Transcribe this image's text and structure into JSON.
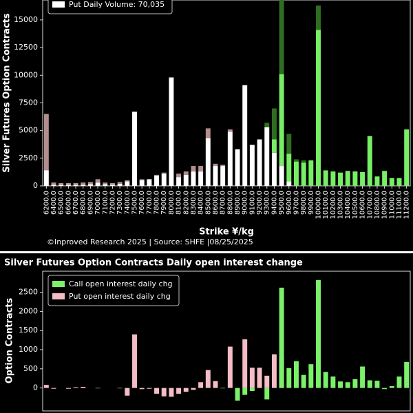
{
  "chart_data": [
    {
      "type": "stacked_bar",
      "y_label": "Silver Futures Option Contracts",
      "x_label": "Strike ¥/kg",
      "credit": "©Inproved Research 2025 | Source: SHFE |08/25/2025",
      "categories": [
        "6200.0",
        "6400.0",
        "6500.0",
        "6600.0",
        "6700.0",
        "6800.0",
        "6900.0",
        "7000.0",
        "7100.0",
        "7200.0",
        "7300.0",
        "7400.0",
        "7500.0",
        "7600.0",
        "7700.0",
        "7800.0",
        "7900.0",
        "8000.0",
        "8100.0",
        "8200.0",
        "8300.0",
        "8400.0",
        "8500.0",
        "8600.0",
        "8700.0",
        "8800.0",
        "8900.0",
        "9000.0",
        "9100.0",
        "9200.0",
        "9300.0",
        "9400.0",
        "9500.0",
        "9600.0",
        "9700.0",
        "9800.0",
        "9900.0",
        "10000.0",
        "10100.0",
        "10200.0",
        "10300.0",
        "10400.0",
        "10500.0",
        "10600.0",
        "10700.0",
        "10800.0",
        "10900.0",
        "11000.0",
        "11100.0",
        "11200.0"
      ],
      "series": [
        {
          "name": "Put Daily Volume: 70,035",
          "color": "#ffffff",
          "values": [
            1400,
            100,
            100,
            100,
            100,
            100,
            150,
            300,
            150,
            100,
            200,
            400,
            6700,
            500,
            600,
            900,
            1100,
            9800,
            800,
            1000,
            1300,
            1300,
            4300,
            1800,
            1800,
            4900,
            3300,
            9100,
            3700,
            4200,
            5300,
            3000,
            1800,
            400,
            0,
            0,
            0,
            0,
            0,
            0,
            0,
            0,
            0,
            0,
            0,
            0,
            0,
            0,
            0,
            0
          ]
        },
        {
          "color": "#b48d8d",
          "values": [
            5100,
            200,
            150,
            150,
            150,
            200,
            200,
            300,
            150,
            150,
            150,
            100,
            0,
            100,
            0,
            100,
            100,
            0,
            300,
            300,
            500,
            500,
            900,
            200,
            100,
            200,
            0,
            0,
            0,
            0,
            0,
            0,
            0,
            0,
            0,
            0,
            0,
            0,
            0,
            0,
            0,
            0,
            0,
            0,
            0,
            0,
            0,
            0,
            0,
            0
          ]
        },
        {
          "color": "#77ee66",
          "values": [
            0,
            0,
            0,
            0,
            0,
            0,
            0,
            0,
            0,
            0,
            0,
            0,
            0,
            0,
            0,
            0,
            0,
            0,
            0,
            0,
            0,
            0,
            0,
            0,
            0,
            0,
            0,
            0,
            0,
            0,
            0,
            1200,
            8300,
            2500,
            2200,
            2100,
            2300,
            14100,
            1400,
            1300,
            1200,
            1350,
            1300,
            1250,
            4500,
            850,
            1350,
            700,
            700,
            5100
          ]
        },
        {
          "color": "#2f6e22",
          "values": [
            0,
            0,
            0,
            0,
            0,
            0,
            0,
            0,
            0,
            0,
            0,
            0,
            0,
            0,
            0,
            0,
            0,
            0,
            0,
            0,
            0,
            0,
            0,
            0,
            0,
            0,
            0,
            0,
            0,
            0,
            400,
            2800,
            6700,
            1800,
            200,
            200,
            0,
            2200,
            0,
            0,
            0,
            0,
            0,
            0,
            0,
            0,
            0,
            0,
            0,
            0
          ]
        }
      ],
      "ylim": [
        0,
        16800
      ],
      "yticks": [
        0,
        2500,
        5000,
        7500,
        10000,
        12500,
        15000
      ]
    },
    {
      "type": "bar",
      "title": "Silver Futures Option Contracts Daily open interest change",
      "y_label": "Option Contracts",
      "series": [
        {
          "name": "Put open interest daily chg",
          "color": "#f4bcc4",
          "values": [
            80,
            -20,
            0,
            -20,
            20,
            30,
            0,
            -10,
            0,
            0,
            -10,
            -200,
            1400,
            -30,
            -20,
            -150,
            -220,
            -230,
            -150,
            -100,
            -50,
            150,
            470,
            180,
            -10,
            1080,
            0,
            1270,
            530,
            530,
            320,
            880,
            820,
            0,
            0,
            0,
            0,
            0,
            0,
            0,
            0,
            0,
            0,
            0,
            0,
            0,
            0,
            0,
            0,
            0
          ]
        },
        {
          "name": "Call open interest daily chg",
          "color": "#7cf06a",
          "values": [
            0,
            0,
            0,
            0,
            0,
            0,
            0,
            0,
            0,
            0,
            0,
            0,
            0,
            0,
            0,
            0,
            0,
            0,
            0,
            0,
            0,
            0,
            0,
            0,
            0,
            0,
            -330,
            -180,
            -80,
            0,
            -300,
            0,
            2620,
            520,
            700,
            340,
            620,
            2820,
            420,
            300,
            170,
            150,
            230,
            560,
            200,
            190,
            -30,
            50,
            300,
            680
          ]
        }
      ],
      "legend_order": [
        1,
        0
      ],
      "ylim": [
        -600,
        3050
      ],
      "yticks": [
        0,
        500,
        1000,
        1500,
        2000,
        2500
      ]
    }
  ]
}
